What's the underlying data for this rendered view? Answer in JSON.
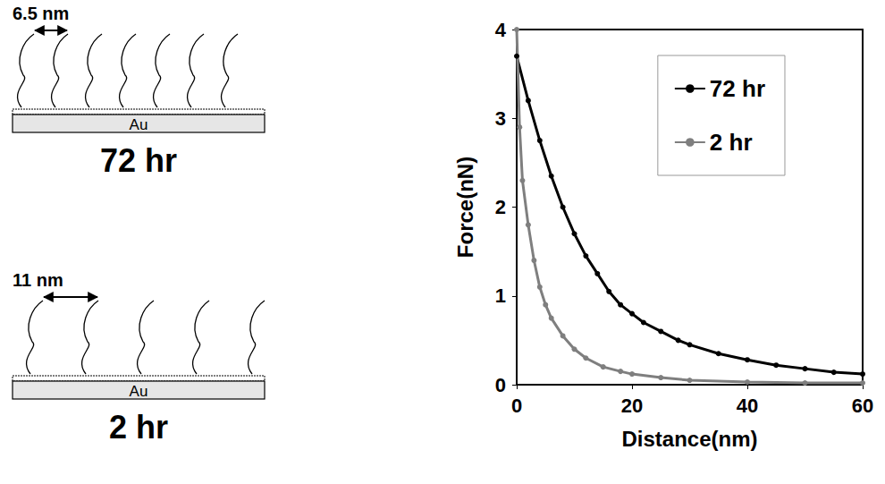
{
  "chart_data": {
    "type": "line",
    "x_label": "Distance(nm)",
    "y_label": "Force(nN)",
    "xlim": [
      0,
      60
    ],
    "xticks": [
      0,
      20,
      40,
      60
    ],
    "ylim": [
      0,
      4
    ],
    "yticks": [
      0,
      1,
      2,
      3,
      4
    ],
    "grid": false,
    "legend": "top-right",
    "series": [
      {
        "name": "72 hr",
        "color": "#000000",
        "marker": "circle",
        "line_style": "solid",
        "x": [
          0,
          2,
          4,
          6,
          8,
          10,
          12,
          14,
          16,
          18,
          20,
          22,
          25,
          28,
          30,
          35,
          40,
          45,
          50,
          55,
          60
        ],
        "values": [
          3.7,
          3.2,
          2.75,
          2.35,
          2.0,
          1.7,
          1.45,
          1.25,
          1.05,
          0.9,
          0.8,
          0.7,
          0.6,
          0.5,
          0.45,
          0.35,
          0.28,
          0.22,
          0.18,
          0.14,
          0.12
        ]
      },
      {
        "name": "2 hr",
        "color": "#7f7f7f",
        "marker": "circle",
        "line_style": "solid",
        "x": [
          0,
          0.5,
          1,
          2,
          3,
          4,
          5,
          6,
          8,
          10,
          12,
          15,
          18,
          20,
          25,
          30,
          40,
          50,
          60
        ],
        "values": [
          4.0,
          2.9,
          2.3,
          1.8,
          1.4,
          1.1,
          0.9,
          0.75,
          0.55,
          0.4,
          0.3,
          0.2,
          0.15,
          0.12,
          0.08,
          0.05,
          0.03,
          0.02,
          0.02
        ]
      }
    ]
  },
  "diagram": {
    "panels": [
      {
        "spacing": "6.5 nm",
        "substrate": "Au",
        "label": "72 hr"
      },
      {
        "spacing": "11 nm",
        "substrate": "Au",
        "label": "2 hr"
      }
    ]
  }
}
